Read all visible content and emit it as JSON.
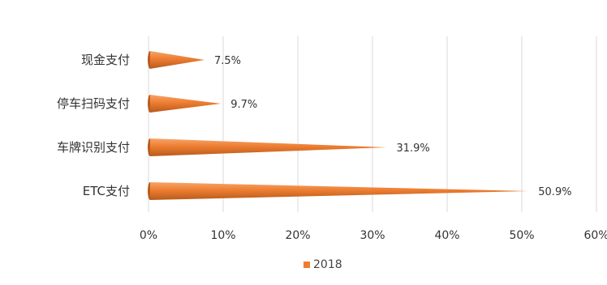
{
  "chart_data": {
    "type": "bar",
    "orientation": "horizontal",
    "bar_shape": "cone",
    "categories": [
      "现金支付",
      "停车扫码支付",
      "车牌识别支付",
      "ETC支付"
    ],
    "series": [
      {
        "name": "2018",
        "values": [
          7.5,
          9.7,
          31.9,
          50.9
        ],
        "data_labels": [
          "7.5%",
          "9.7%",
          "31.9%",
          "50.9%"
        ],
        "color": "#ED7D31"
      }
    ],
    "xlim": [
      0,
      60
    ],
    "x_ticks": [
      "0%",
      "10%",
      "20%",
      "30%",
      "40%",
      "50%",
      "60%"
    ],
    "grid": "vertical",
    "legend": "bottom",
    "title": "",
    "xlabel": "",
    "ylabel": ""
  },
  "colors": {
    "bar": "#ED7D31",
    "bar_dark": "#B85A1C",
    "grid": "#D9D9D9",
    "text": "#333333"
  }
}
